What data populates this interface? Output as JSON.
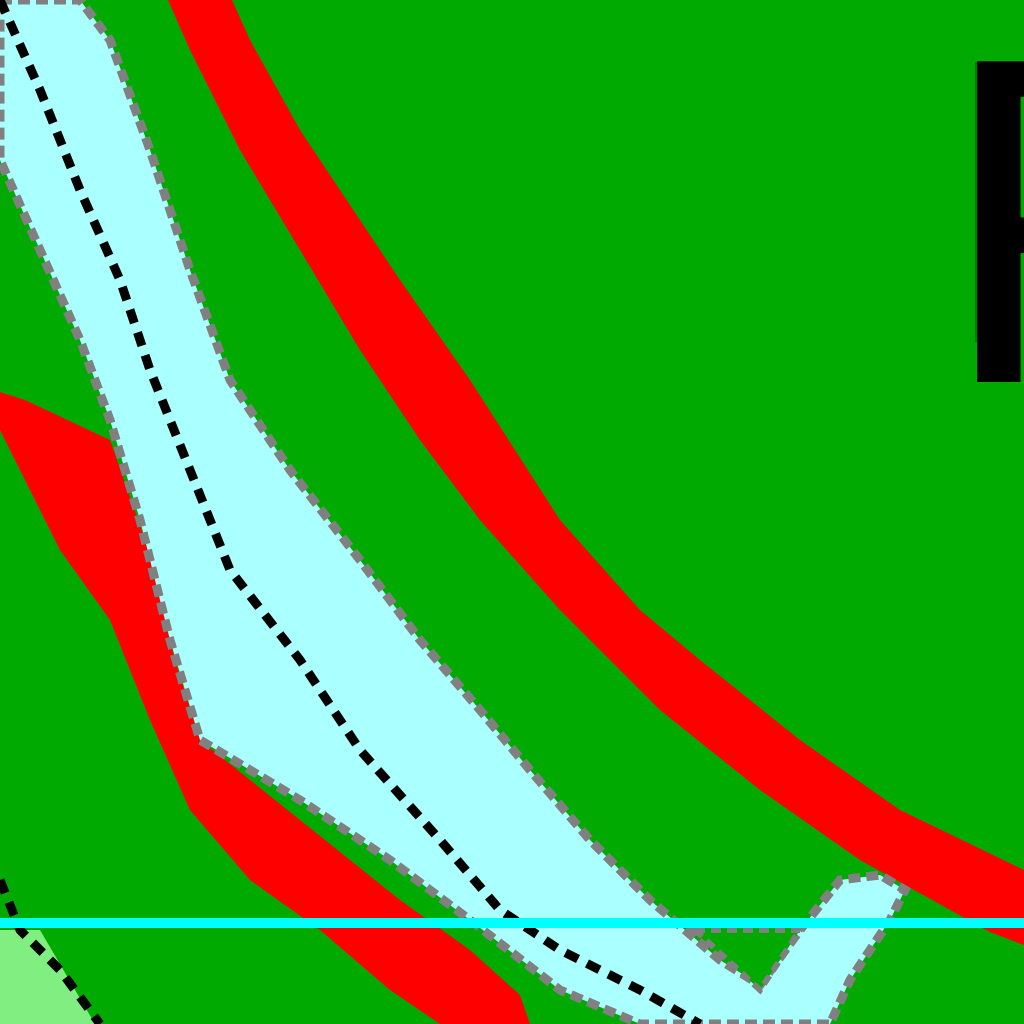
{
  "map": {
    "label": "P",
    "colors": {
      "terrain": "#00aa00",
      "terrain_light": "#80ee80",
      "road_red": "#ff0000",
      "river_fill": "#aaffff",
      "river_edge": "#808080",
      "dashed_line": "#000000",
      "boundary_line": "#00ffff",
      "label": "#000000"
    }
  }
}
